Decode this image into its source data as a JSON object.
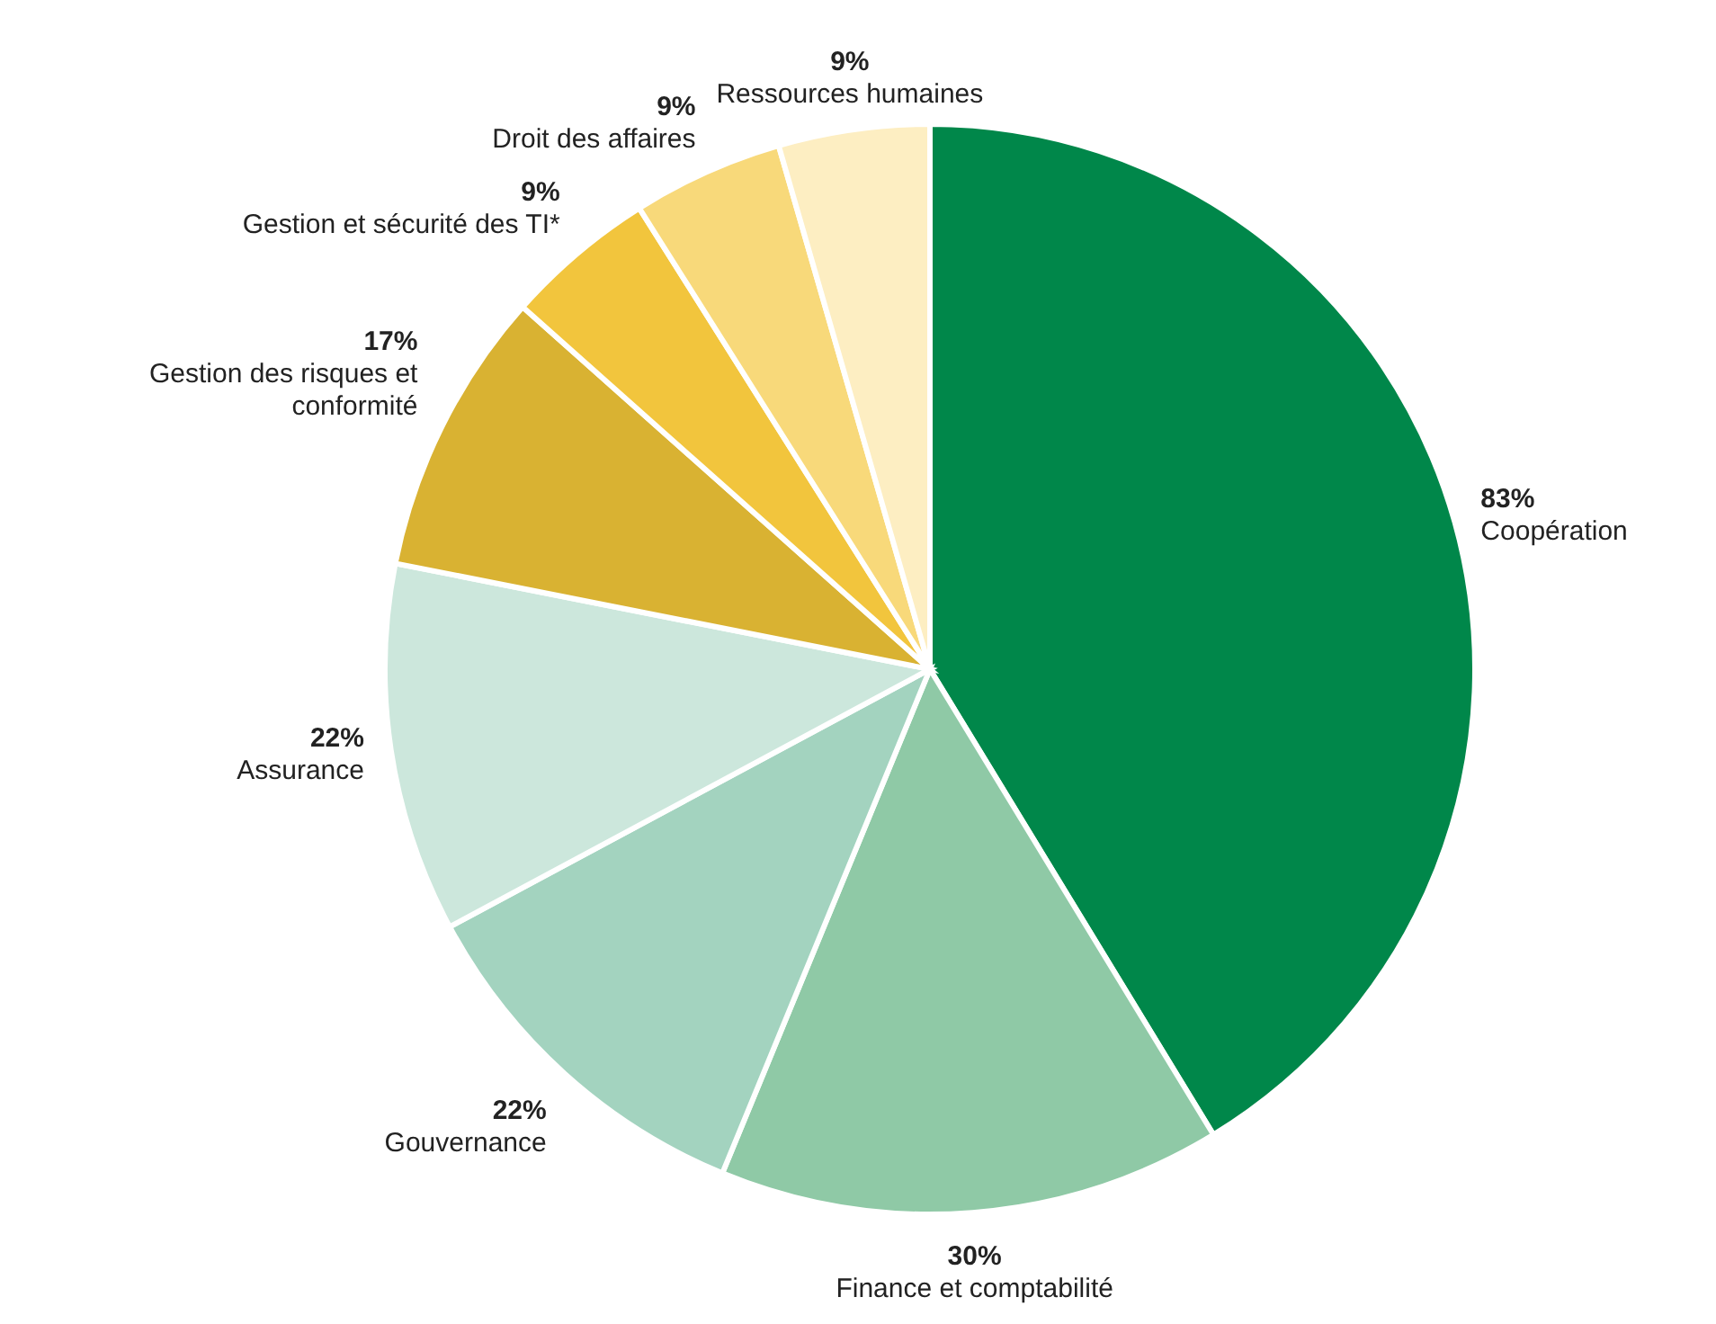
{
  "chart_data": {
    "type": "pie",
    "categories": [
      "Coopération",
      "Finance et comptabilité",
      "Gouvernance",
      "Assurance",
      "Gestion des risques et conformité",
      "Gestion et sécurité des TI*",
      "Droit des affaires",
      "Ressources humaines"
    ],
    "values": [
      83,
      30,
      22,
      22,
      17,
      9,
      9,
      9
    ],
    "value_labels": [
      "83%",
      "30%",
      "22%",
      "22%",
      "17%",
      "9%",
      "9%",
      "9%"
    ],
    "colors": [
      "#00874a",
      "#8fc9a6",
      "#a3d3bf",
      "#cce7dc",
      "#d9b232",
      "#f2c53d",
      "#f8d97a",
      "#fdeec2"
    ],
    "legend": false
  }
}
